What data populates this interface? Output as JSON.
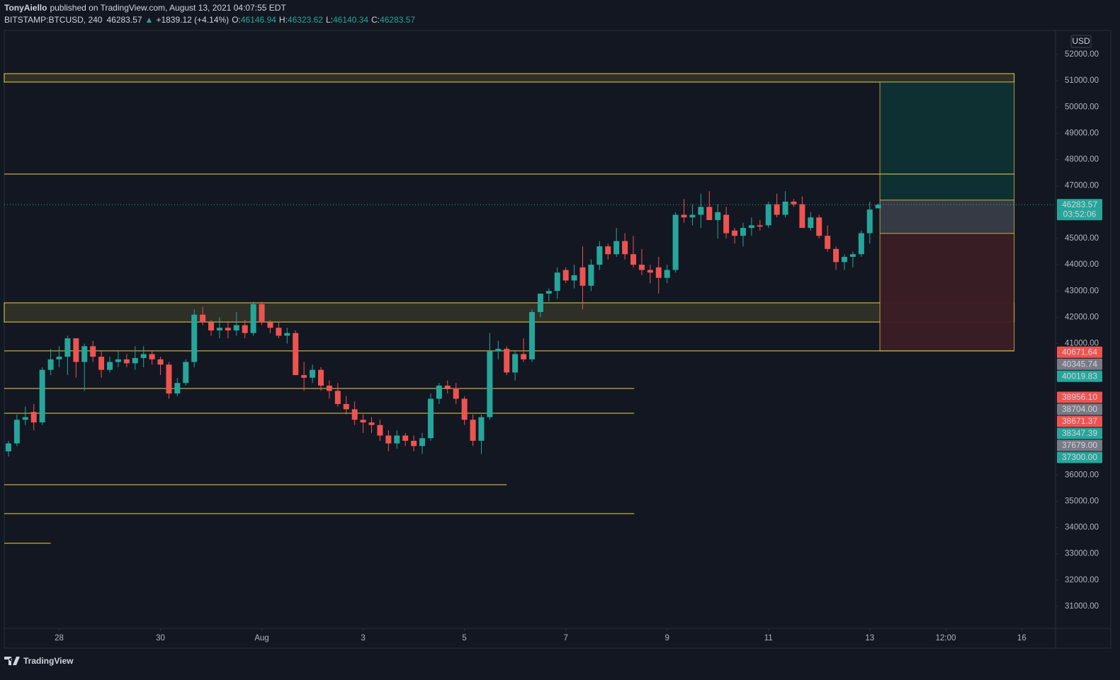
{
  "header": {
    "author": "TonyAiello",
    "published": "published on TradingView.com, August 13, 2021 04:07:55 EDT",
    "symbol": "BITSTAMP:BTCUSD, 240",
    "last": 46283.57,
    "change_arrow": "▲",
    "change": "+1839.12 (+4.14%)",
    "ohlc": [
      {
        "key": "O:",
        "value": 46146.94
      },
      {
        "key": "H:",
        "value": 46323.62
      },
      {
        "key": "L:",
        "value": 46140.34
      },
      {
        "key": "C:",
        "value": 46283.57
      }
    ]
  },
  "chart_data": {
    "type": "candlestick",
    "currency": "USD",
    "up_color": "#26a69a",
    "down_color": "#ef5350",
    "ylim": [
      30164,
      52888
    ],
    "yticks": [
      {
        "value": 52000,
        "label": "52000.00"
      },
      {
        "value": 51000,
        "label": "51000.00"
      },
      {
        "value": 50000,
        "label": "50000.00"
      },
      {
        "value": 49000,
        "label": "49000.00"
      },
      {
        "value": 48000,
        "label": "48000.00"
      },
      {
        "value": 47000,
        "label": "47000.00"
      },
      {
        "value": 45000,
        "label": "45000.00"
      },
      {
        "value": 44000,
        "label": "44000.00"
      },
      {
        "value": 43000,
        "label": "43000.00"
      },
      {
        "value": 42000,
        "label": "42000.00"
      },
      {
        "value": 41000,
        "label": "41000.00"
      },
      {
        "value": 36000,
        "label": "36000.00"
      },
      {
        "value": 35000,
        "label": "35000.00"
      },
      {
        "value": 34000,
        "label": "34000.00"
      },
      {
        "value": 33000,
        "label": "33000.00"
      },
      {
        "value": 32000,
        "label": "32000.00"
      },
      {
        "value": 31000,
        "label": "31000.00"
      }
    ],
    "xlim": [
      -0.5,
      124
    ],
    "xticks": [
      {
        "value": 6,
        "label": "28"
      },
      {
        "value": 18,
        "label": "30"
      },
      {
        "value": 30,
        "label": "Aug"
      },
      {
        "value": 42,
        "label": "3"
      },
      {
        "value": 54,
        "label": "5"
      },
      {
        "value": 66,
        "label": "7"
      },
      {
        "value": 78,
        "label": "9"
      },
      {
        "value": 90,
        "label": "11"
      },
      {
        "value": 102,
        "label": "13"
      },
      {
        "value": 111,
        "label": "12:00"
      },
      {
        "value": 120,
        "label": "16"
      }
    ],
    "candles": [
      [
        36900,
        37300,
        36700,
        37200
      ],
      [
        37200,
        38300,
        37100,
        38100
      ],
      [
        38100,
        38600,
        37900,
        38200
      ],
      [
        38400,
        38700,
        37700,
        38000
      ],
      [
        38000,
        40100,
        37900,
        40000
      ],
      [
        40000,
        40800,
        39800,
        40400
      ],
      [
        40400,
        40900,
        40100,
        40500
      ],
      [
        40500,
        41300,
        39800,
        41200
      ],
      [
        41200,
        41200,
        39700,
        40300
      ],
      [
        40300,
        41000,
        39200,
        40900
      ],
      [
        40900,
        41100,
        40300,
        40500
      ],
      [
        40500,
        40700,
        39700,
        40000
      ],
      [
        40000,
        40500,
        39900,
        40300
      ],
      [
        40300,
        40700,
        40100,
        40400
      ],
      [
        40400,
        40600,
        40100,
        40250
      ],
      [
        40250,
        40900,
        40000,
        40450
      ],
      [
        40450,
        40900,
        40100,
        40600
      ],
      [
        40600,
        40700,
        40200,
        40400
      ],
      [
        40400,
        40500,
        39800,
        40200
      ],
      [
        40200,
        40300,
        38900,
        39100
      ],
      [
        39100,
        39700,
        39000,
        39500
      ],
      [
        39500,
        40400,
        39400,
        40300
      ],
      [
        40300,
        42300,
        40100,
        42100
      ],
      [
        42100,
        42400,
        41700,
        41800
      ],
      [
        41800,
        41900,
        41300,
        41500
      ],
      [
        41500,
        42000,
        41200,
        41600
      ],
      [
        41600,
        41800,
        41200,
        41500
      ],
      [
        41500,
        42200,
        41300,
        41700
      ],
      [
        41700,
        41900,
        41200,
        41400
      ],
      [
        41400,
        42600,
        41300,
        42500
      ],
      [
        42500,
        42600,
        41700,
        41800
      ],
      [
        41800,
        41900,
        41400,
        41600
      ],
      [
        41600,
        41800,
        41200,
        41300
      ],
      [
        41300,
        41600,
        41000,
        41400
      ],
      [
        41400,
        41500,
        39800,
        39800
      ],
      [
        39800,
        40300,
        39200,
        39700
      ],
      [
        39700,
        40200,
        39500,
        40000
      ],
      [
        40000,
        40100,
        39200,
        39400
      ],
      [
        39400,
        39600,
        38900,
        39200
      ],
      [
        39200,
        39500,
        38600,
        38700
      ],
      [
        38700,
        39000,
        38300,
        38500
      ],
      [
        38500,
        38800,
        37900,
        38100
      ],
      [
        38100,
        38300,
        37600,
        38000
      ],
      [
        38000,
        38200,
        37600,
        37900
      ],
      [
        37900,
        38100,
        37300,
        37500
      ],
      [
        37500,
        37700,
        36900,
        37200
      ],
      [
        37200,
        37700,
        37000,
        37500
      ],
      [
        37500,
        37600,
        37100,
        37300
      ],
      [
        37300,
        37500,
        36900,
        37100
      ],
      [
        37100,
        37600,
        36800,
        37400
      ],
      [
        37400,
        39100,
        37300,
        38900
      ],
      [
        38900,
        39500,
        38700,
        39400
      ],
      [
        39400,
        39600,
        39100,
        39300
      ],
      [
        39300,
        39500,
        38700,
        38900
      ],
      [
        38900,
        39000,
        37900,
        38100
      ],
      [
        38100,
        38300,
        37100,
        37300
      ],
      [
        37300,
        38300,
        36800,
        38200
      ],
      [
        38200,
        41400,
        38100,
        40700
      ],
      [
        40700,
        41100,
        40400,
        40800
      ],
      [
        40800,
        40900,
        39800,
        39900
      ],
      [
        39900,
        40700,
        39600,
        40600
      ],
      [
        40600,
        41200,
        40300,
        40400
      ],
      [
        40400,
        42300,
        40300,
        42200
      ],
      [
        42200,
        42900,
        42000,
        42900
      ],
      [
        42900,
        43100,
        42600,
        43000
      ],
      [
        43000,
        43900,
        42700,
        43700
      ],
      [
        43800,
        43900,
        43300,
        43400
      ],
      [
        43400,
        44000,
        43100,
        43600
      ],
      [
        43900,
        44700,
        42300,
        43200
      ],
      [
        43200,
        44200,
        43000,
        44000
      ],
      [
        44000,
        44900,
        43800,
        44700
      ],
      [
        44700,
        44800,
        44200,
        44400
      ],
      [
        44400,
        45400,
        44300,
        44900
      ],
      [
        44900,
        45200,
        44200,
        44400
      ],
      [
        44400,
        45100,
        43900,
        44000
      ],
      [
        44000,
        44600,
        43600,
        43800
      ],
      [
        43800,
        44000,
        43300,
        43700
      ],
      [
        43900,
        44300,
        42900,
        43500
      ],
      [
        43500,
        44000,
        43300,
        43800
      ],
      [
        43800,
        46000,
        43700,
        45900
      ],
      [
        45900,
        46500,
        45600,
        45800
      ],
      [
        45800,
        46300,
        45500,
        45900
      ],
      [
        45900,
        46700,
        45400,
        46200
      ],
      [
        46200,
        46800,
        45700,
        45700
      ],
      [
        45700,
        46300,
        45000,
        46000
      ],
      [
        45900,
        46200,
        45000,
        45200
      ],
      [
        45300,
        45400,
        44800,
        45100
      ],
      [
        45100,
        45600,
        44700,
        45400
      ],
      [
        45400,
        45800,
        45100,
        45500
      ],
      [
        45500,
        45700,
        45300,
        45450
      ],
      [
        45500,
        46400,
        45400,
        46300
      ],
      [
        46300,
        46700,
        45800,
        45900
      ],
      [
        45900,
        46800,
        45800,
        46400
      ],
      [
        46400,
        46500,
        46200,
        46300
      ],
      [
        46300,
        46600,
        45400,
        45400
      ],
      [
        45400,
        46000,
        45300,
        45800
      ],
      [
        45800,
        45900,
        45000,
        45100
      ],
      [
        45100,
        45500,
        44500,
        44600
      ],
      [
        44600,
        44700,
        43800,
        44100
      ],
      [
        44100,
        44400,
        43800,
        44300
      ],
      [
        44300,
        44500,
        43900,
        44400
      ],
      [
        44400,
        45300,
        44300,
        45200
      ],
      [
        45200,
        46400,
        44800,
        46100
      ],
      [
        46146.94,
        46323.62,
        46140.34,
        46283.57
      ]
    ],
    "drawings": {
      "color": "#e8d24a",
      "boxes": [
        {
          "from": 50950,
          "to": 51270,
          "x2": 119.1
        },
        {
          "from": 41820,
          "to": 42550,
          "x2": 119.1
        }
      ],
      "lines": [
        {
          "price": 47450,
          "x2": 119.1
        },
        {
          "price": 40720,
          "x2": 119.1
        },
        {
          "price": 39290,
          "x2": 74.1
        },
        {
          "price": 38350,
          "x2": 74.1
        },
        {
          "price": 35630,
          "x2": 59
        },
        {
          "price": 34530,
          "x2": 74.1
        },
        {
          "price": 33400,
          "x2": 5
        }
      ]
    },
    "position": {
      "x1": 103.2,
      "x2": 119.1,
      "target": 50950,
      "entry_high": 46460,
      "entry_low": 45190,
      "stop": 40720
    },
    "price_labels": [
      {
        "value": 46283.57,
        "color": "#26a69a",
        "sub": "03:52:06"
      },
      {
        "value": 40671.64,
        "color": "#ef5350"
      },
      {
        "value": 40345.74,
        "color": "#787b86"
      },
      {
        "value": 40019.83,
        "color": "#26a69a"
      },
      {
        "value": 38956.1,
        "label": "38956.10",
        "color": "#ef5350"
      },
      {
        "value": 38704,
        "label": "38704.00",
        "color": "#787b86"
      },
      {
        "value": 38671.37,
        "color": "#ef5350"
      },
      {
        "value": 38347.39,
        "color": "#26a69a"
      },
      {
        "value": 37679,
        "label": "37679.00",
        "color": "#787b86"
      },
      {
        "value": 37300,
        "label": "37300.00",
        "color": "#26a69a"
      }
    ]
  },
  "footer": {
    "logo": "TradingView"
  }
}
